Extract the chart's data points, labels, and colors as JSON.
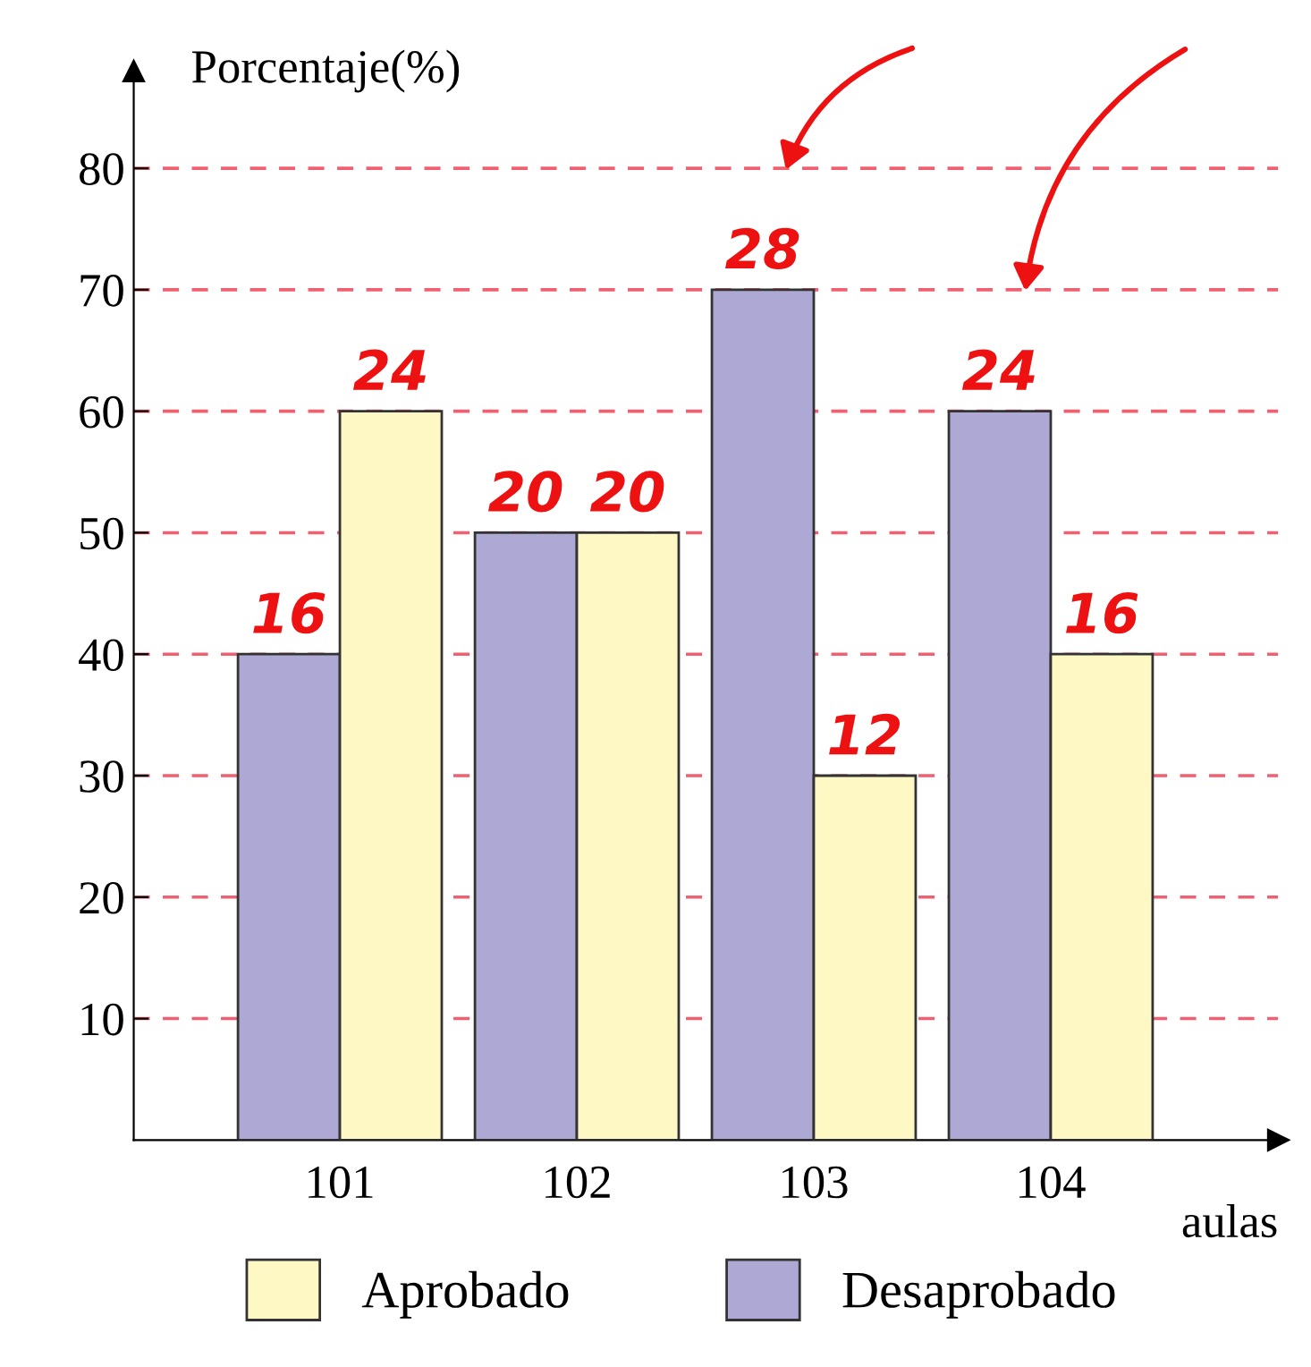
{
  "chart_data": {
    "type": "bar",
    "ylabel": "Porcentaje(%)",
    "xlabel": "aulas",
    "categories": [
      "101",
      "102",
      "103",
      "104"
    ],
    "series": [
      {
        "name": "Desaprobado",
        "color": "#aea8d4",
        "values": [
          40,
          50,
          70,
          60
        ]
      },
      {
        "name": "Aprobado",
        "color": "#fdf8c4",
        "values": [
          60,
          50,
          30,
          40
        ]
      }
    ],
    "ylim": [
      0,
      88
    ],
    "yticks": [
      10,
      20,
      30,
      40,
      50,
      60,
      70,
      80
    ],
    "grid": "y",
    "legend": "bottom",
    "annotations": [
      {
        "text": "16",
        "x": "101",
        "y": 40
      },
      {
        "text": "24",
        "x": "101",
        "y": 60
      },
      {
        "text": "20",
        "x": "102",
        "y": 50
      },
      {
        "text": "20",
        "x": "102",
        "y": 50
      },
      {
        "text": "28",
        "x": "103",
        "y": 70
      },
      {
        "text": "12",
        "x": "103",
        "y": 30
      },
      {
        "text": "24",
        "x": "104",
        "y": 60
      },
      {
        "text": "16",
        "x": "104",
        "y": 40
      }
    ]
  }
}
